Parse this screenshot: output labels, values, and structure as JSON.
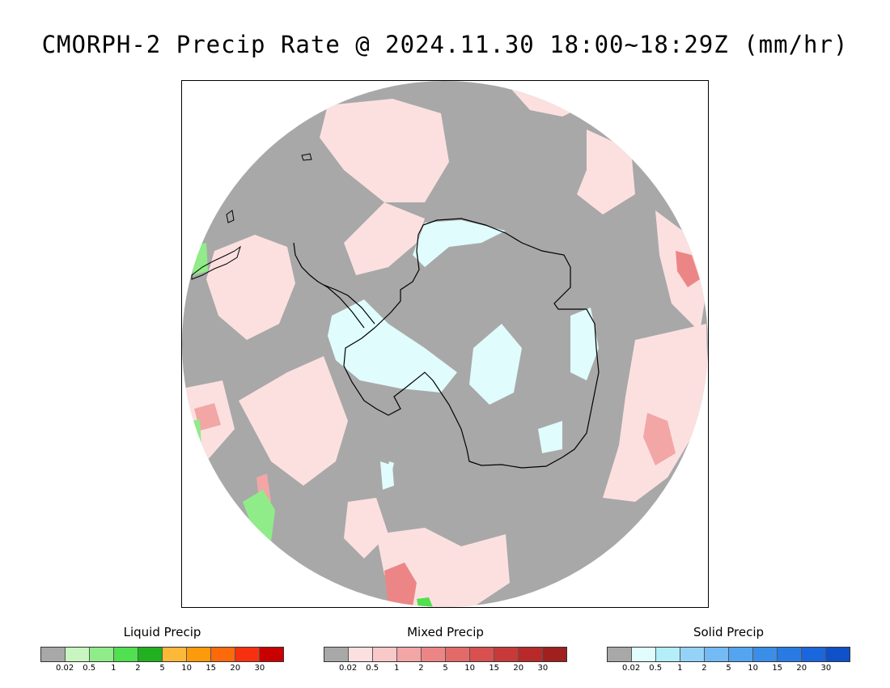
{
  "title": "CMORPH-2 Precip Rate @ 2024.11.30 18:00~18:29Z (mm/hr)",
  "map": {
    "projection": "south-polar-stereographic",
    "background_color": "#a8a8a8",
    "coastline_color": "#000000",
    "region": "Antarctica and Southern Ocean"
  },
  "legends": [
    {
      "id": "liquid",
      "title": "Liquid Precip",
      "colors": [
        "#a8a8a8",
        "#c8f5c0",
        "#90ec88",
        "#50e050",
        "#20b020",
        "#fcb838",
        "#fc9a0c",
        "#fc6a0c",
        "#f83010",
        "#c80000"
      ],
      "ticks": [
        "0.02",
        "0.5",
        "1",
        "2",
        "5",
        "10",
        "15",
        "20",
        "30"
      ]
    },
    {
      "id": "mixed",
      "title": "Mixed Precip",
      "colors": [
        "#a8a8a8",
        "#fce0e0",
        "#f9c8c8",
        "#f2a6a6",
        "#ec8686",
        "#e46a6a",
        "#d85050",
        "#c83a3a",
        "#b82a2a",
        "#a02020"
      ],
      "ticks": [
        "0.02",
        "0.5",
        "1",
        "2",
        "5",
        "10",
        "15",
        "20",
        "30"
      ]
    },
    {
      "id": "solid",
      "title": "Solid Precip",
      "colors": [
        "#a8a8a8",
        "#e0fcfc",
        "#b4eef8",
        "#94d2f8",
        "#74baf4",
        "#54a4f0",
        "#3a8ee8",
        "#2a7ae4",
        "#1a66dc",
        "#1050c8"
      ],
      "ticks": [
        "0.02",
        "0.5",
        "1",
        "2",
        "5",
        "10",
        "15",
        "20",
        "30"
      ]
    }
  ]
}
